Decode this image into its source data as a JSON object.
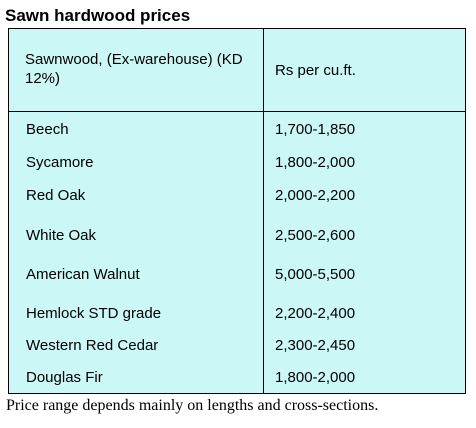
{
  "title": "Sawn hardwood prices",
  "table": {
    "header_left": "Sawnwood, (Ex-warehouse) (KD 12%)",
    "header_right": "Rs per cu.ft.",
    "rows": [
      {
        "name": "Beech",
        "price": "1,700-1,850"
      },
      {
        "name": "Sycamore",
        "price": "1,800-2,000"
      },
      {
        "name": "Red Oak",
        "price": "2,000-2,200"
      },
      {
        "name": "White Oak",
        "price": "2,500-2,600"
      },
      {
        "name": "American Walnut",
        "price": "5,000-5,500"
      },
      {
        "name": "Hemlock STD grade",
        "price": "2,200-2,400"
      },
      {
        "name": "Western Red Cedar",
        "price": "2,300-2,450"
      },
      {
        "name": "Douglas Fir",
        "price": "1,800-2,000"
      }
    ]
  },
  "note": "Price range depends mainly on lengths and cross-sections.",
  "colors": {
    "table_background": "#ccf7f7"
  }
}
